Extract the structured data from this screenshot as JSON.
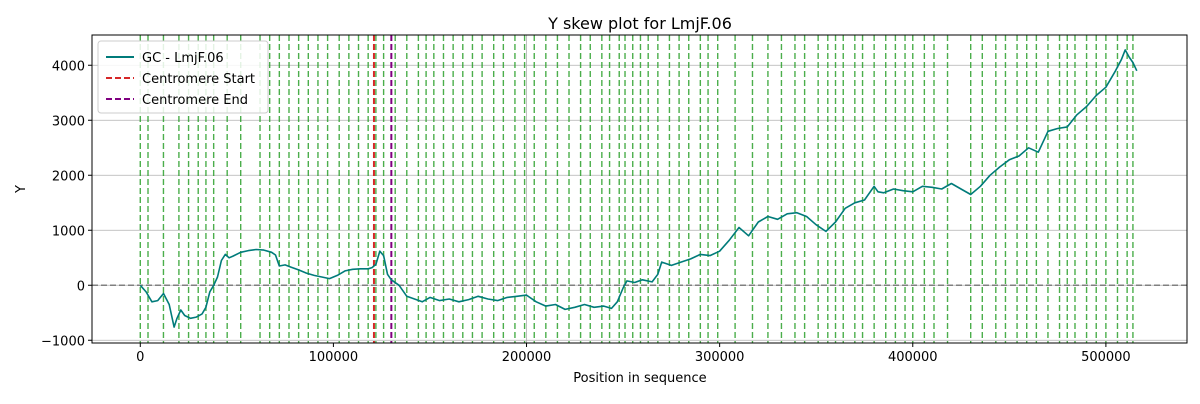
{
  "chart_data": {
    "type": "line",
    "title": "Y skew plot for LmjF.06",
    "xlabel": "Position in sequence",
    "ylabel": "Y",
    "xlim": [
      -25000,
      542000
    ],
    "ylim": [
      -1050,
      4550
    ],
    "x_ticks": [
      0,
      100000,
      200000,
      300000,
      400000,
      500000
    ],
    "y_ticks": [
      -1000,
      0,
      1000,
      2000,
      3000,
      4000
    ],
    "grid": {
      "x": "at 200000 only",
      "y": true
    },
    "legend_position": "top-left",
    "legend": [
      "GC - LmjF.06",
      "Centromere Start",
      "Centromere End"
    ],
    "colors": {
      "series": "#007b7a",
      "centromere_start": "#d62728",
      "centromere_end": "#800080",
      "markers": "#2ca02c",
      "zero_line": "#808080",
      "grid": "#b0b0b0"
    },
    "centromere_start": 121000,
    "centromere_end": 130000,
    "zero_line": 0,
    "marker_lines": [
      0,
      4000,
      12000,
      20000,
      25000,
      30000,
      34000,
      38000,
      45000,
      52000,
      62000,
      67000,
      72000,
      77000,
      82000,
      87000,
      92000,
      97000,
      103000,
      108000,
      113000,
      118000,
      122000,
      126000,
      132000,
      138000,
      144000,
      148000,
      152000,
      157000,
      162000,
      167000,
      172000,
      177000,
      183000,
      188000,
      194000,
      199000,
      204000,
      210000,
      216000,
      222000,
      228000,
      233000,
      239000,
      243000,
      248000,
      251000,
      255000,
      259000,
      263000,
      268000,
      274000,
      279000,
      284000,
      290000,
      294000,
      299000,
      308000,
      317000,
      325000,
      332000,
      339000,
      344000,
      351000,
      356000,
      360000,
      364000,
      370000,
      374000,
      380000,
      386000,
      391000,
      396000,
      400000,
      406000,
      411000,
      418000,
      430000,
      436000,
      443000,
      448000,
      454000,
      459000,
      464000,
      470000,
      476000,
      480000,
      484000,
      490000,
      495000,
      500000,
      506000,
      511000,
      514000
    ],
    "series": [
      {
        "name": "GC - LmjF.06",
        "x": [
          0,
          3000,
          6000,
          9000,
          12000,
          15000,
          17500,
          19000,
          21000,
          23000,
          26000,
          29000,
          32000,
          34000,
          36000,
          38000,
          40000,
          42000,
          44000,
          46000,
          48000,
          52000,
          56000,
          60000,
          64000,
          68000,
          70000,
          72000,
          75000,
          78000,
          82000,
          86000,
          90000,
          94000,
          98000,
          102000,
          106000,
          110000,
          114000,
          118000,
          120000,
          122000,
          124000,
          126000,
          128000,
          130000,
          134000,
          138000,
          142000,
          146000,
          150000,
          155000,
          160000,
          165000,
          170000,
          175000,
          180000,
          185000,
          190000,
          195000,
          200000,
          205000,
          210000,
          215000,
          220000,
          225000,
          230000,
          235000,
          240000,
          244000,
          247000,
          250000,
          252000,
          256000,
          260000,
          265000,
          268000,
          270000,
          275000,
          280000,
          285000,
          290000,
          295000,
          300000,
          305000,
          310000,
          315000,
          320000,
          325000,
          330000,
          335000,
          340000,
          345000,
          350000,
          355000,
          360000,
          365000,
          370000,
          375000,
          380000,
          382000,
          385000,
          390000,
          395000,
          400000,
          405000,
          410000,
          415000,
          420000,
          425000,
          430000,
          435000,
          440000,
          445000,
          450000,
          455000,
          460000,
          465000,
          470000,
          475000,
          480000,
          485000,
          490000,
          495000,
          500000,
          505000,
          508000,
          510000,
          512000,
          514000,
          516000
        ],
        "y": [
          0,
          -120,
          -300,
          -280,
          -150,
          -350,
          -760,
          -600,
          -450,
          -550,
          -600,
          -580,
          -520,
          -400,
          -120,
          0,
          150,
          450,
          560,
          500,
          530,
          600,
          630,
          650,
          640,
          600,
          550,
          350,
          370,
          330,
          280,
          220,
          180,
          150,
          120,
          180,
          260,
          290,
          300,
          300,
          320,
          380,
          620,
          540,
          200,
          100,
          0,
          -200,
          -250,
          -300,
          -220,
          -280,
          -250,
          -300,
          -260,
          -200,
          -250,
          -280,
          -220,
          -200,
          -180,
          -300,
          -380,
          -350,
          -440,
          -400,
          -350,
          -400,
          -380,
          -420,
          -300,
          -50,
          80,
          50,
          100,
          60,
          200,
          420,
          360,
          420,
          480,
          560,
          540,
          620,
          820,
          1050,
          900,
          1150,
          1250,
          1200,
          1300,
          1320,
          1250,
          1100,
          980,
          1150,
          1400,
          1500,
          1550,
          1800,
          1700,
          1680,
          1750,
          1720,
          1700,
          1800,
          1780,
          1750,
          1850,
          1750,
          1650,
          1800,
          2000,
          2150,
          2280,
          2350,
          2500,
          2420,
          2800,
          2850,
          2880,
          3100,
          3250,
          3450,
          3600,
          3900,
          4100,
          4280,
          4150,
          4050,
          3900
        ]
      }
    ]
  }
}
